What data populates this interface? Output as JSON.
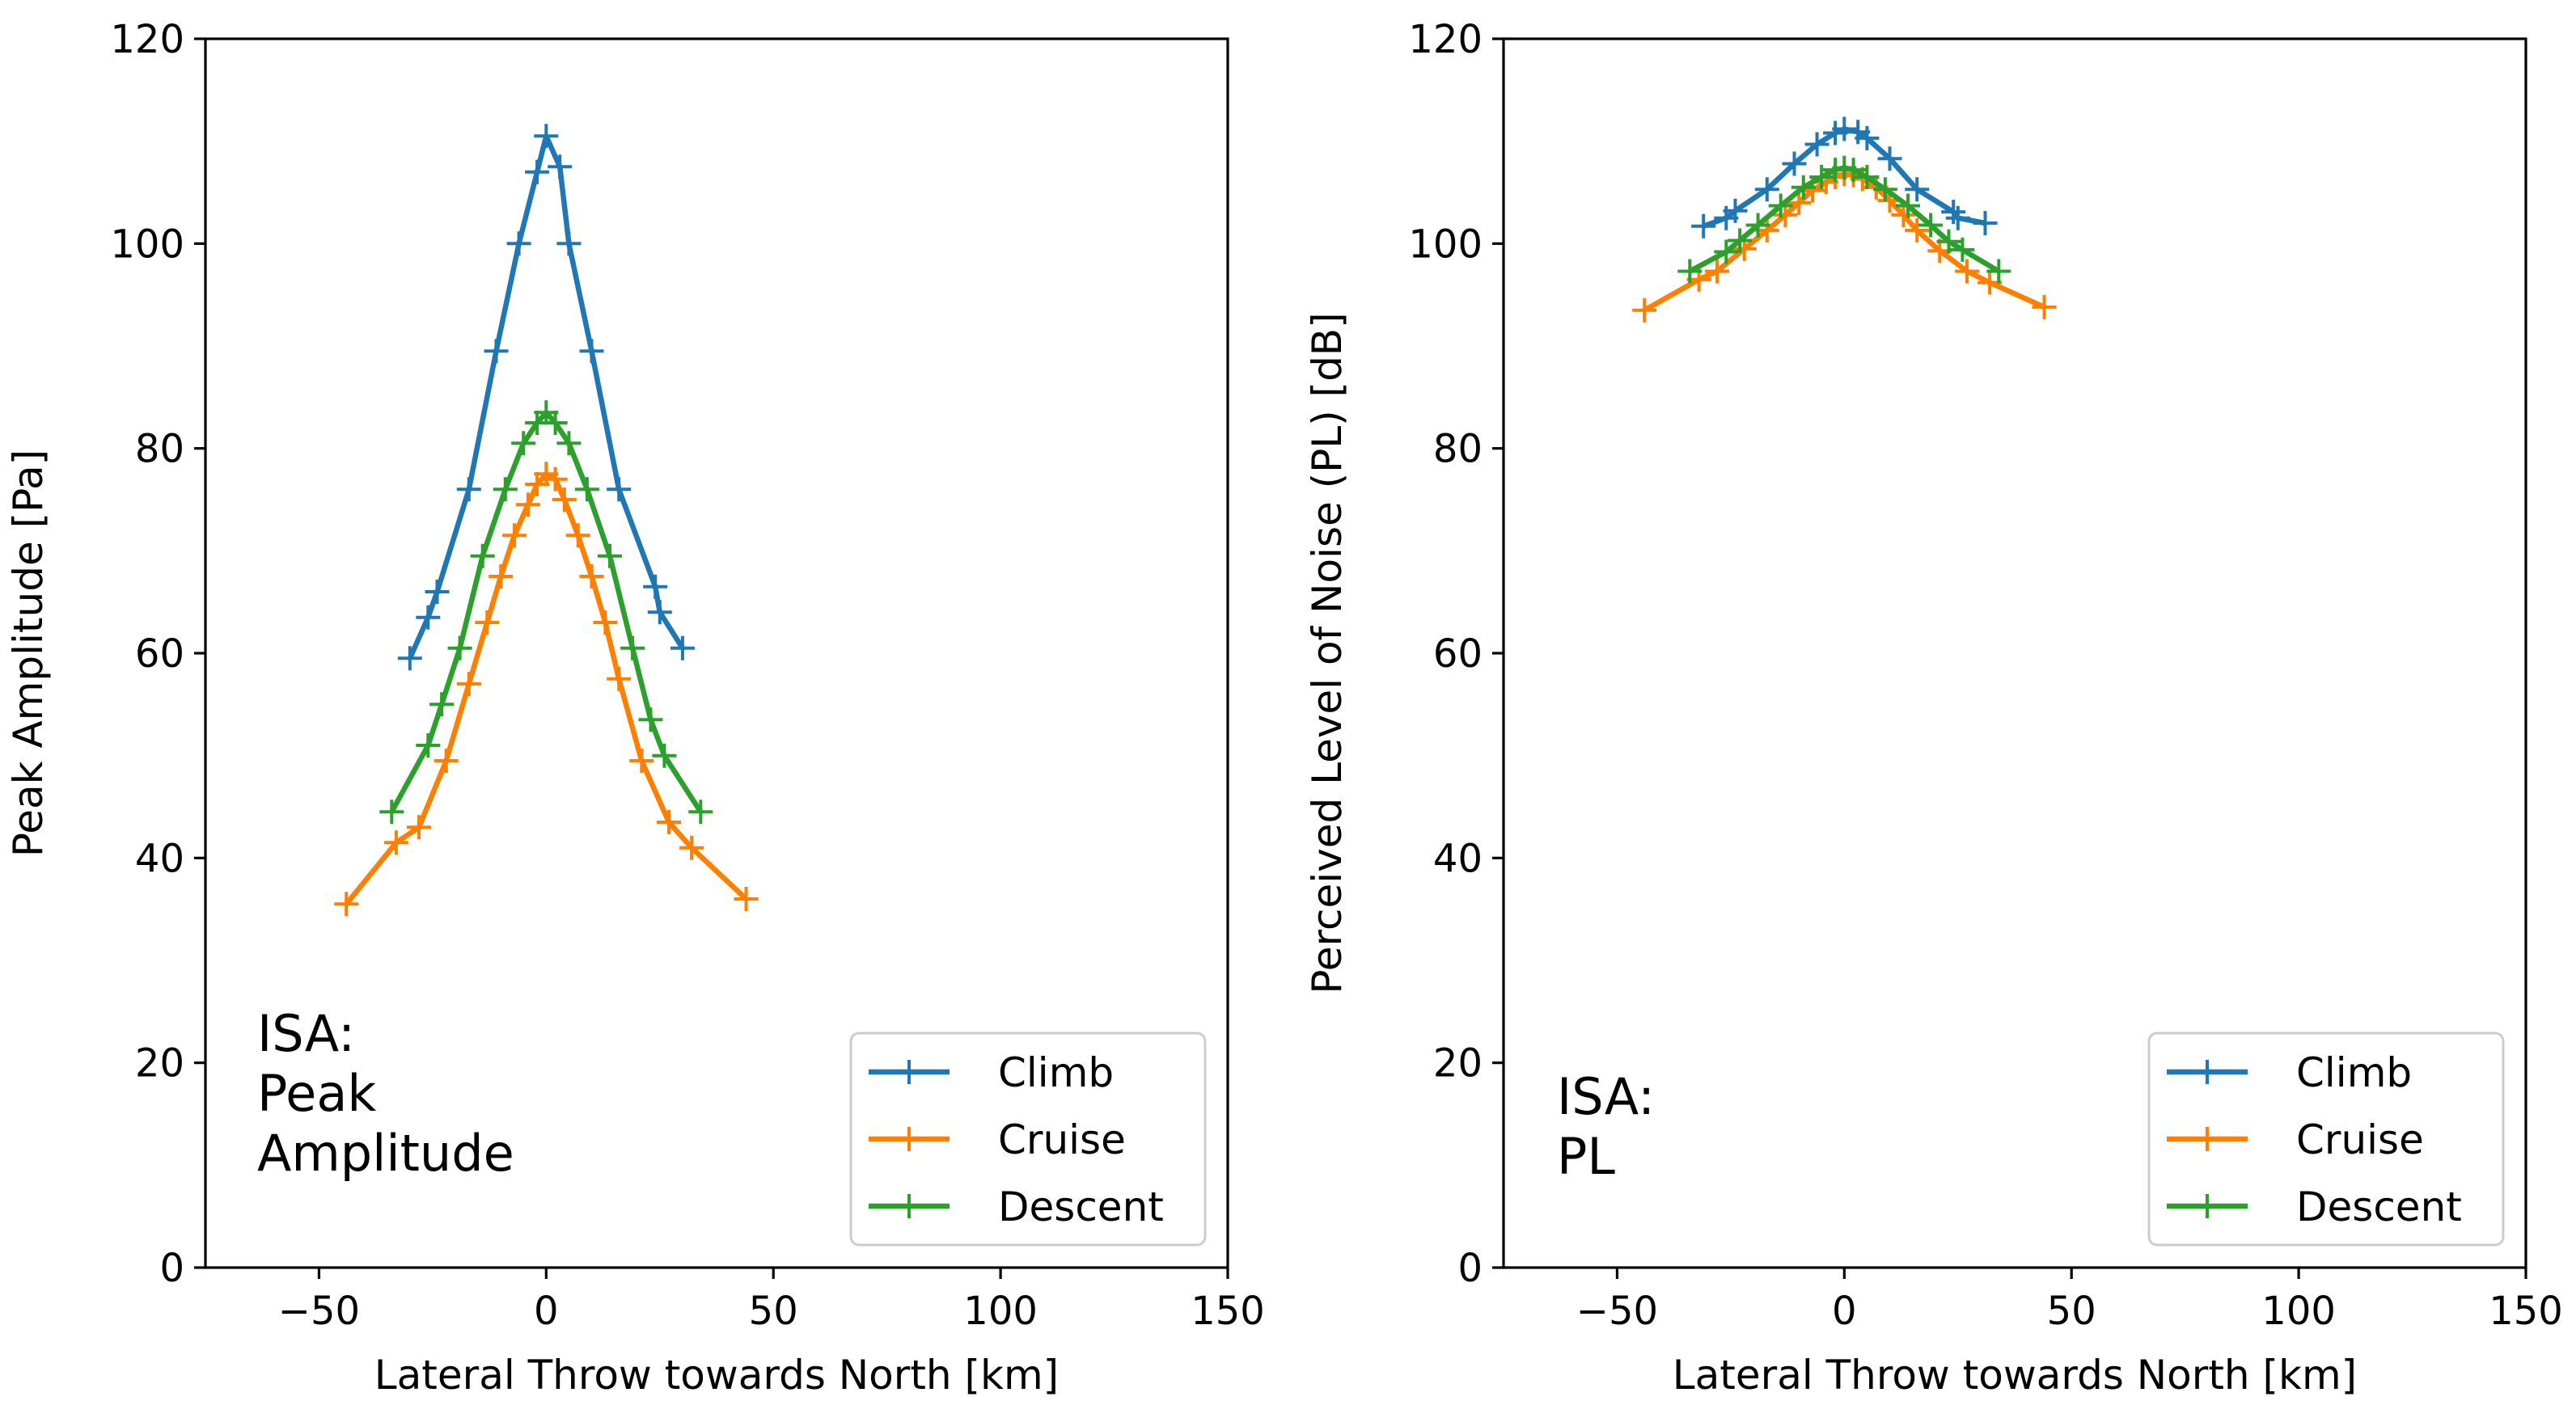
{
  "chart_data": [
    {
      "type": "line",
      "title": "",
      "xlabel": "Lateral Throw towards North [km]",
      "ylabel": "Peak Amplitude [Pa]",
      "xlim": [
        -75,
        150
      ],
      "ylim": [
        0,
        120
      ],
      "xticks": [
        "−50",
        "0",
        "50",
        "100",
        "150"
      ],
      "xtick_values": [
        -50,
        0,
        50,
        100,
        150
      ],
      "yticks": [
        "0",
        "20",
        "40",
        "60",
        "80",
        "100",
        "120"
      ],
      "ytick_values": [
        0,
        20,
        40,
        60,
        80,
        100,
        120
      ],
      "annotation": [
        "ISA:",
        "Peak",
        "Amplitude"
      ],
      "legend_position": "lower right",
      "series": [
        {
          "name": "Climb",
          "color": "#1f77b4",
          "x": [
            -30,
            -26,
            -24,
            -17,
            -11,
            -6,
            -2,
            0,
            3,
            5,
            10,
            16,
            24,
            25,
            30
          ],
          "y": [
            59.5,
            63.5,
            66,
            76,
            89.5,
            100,
            107,
            110.5,
            107.5,
            100,
            89.5,
            76,
            66.5,
            64,
            60.5
          ]
        },
        {
          "name": "Cruise",
          "color": "#ff7f00",
          "x": [
            -44,
            -33,
            -28,
            -22,
            -17,
            -13,
            -10,
            -7,
            -4,
            -2,
            0,
            2,
            4,
            7,
            10,
            13,
            16,
            21,
            27,
            32,
            44
          ],
          "y": [
            35.5,
            41.5,
            43,
            49.5,
            57,
            63,
            67.5,
            71.5,
            74.5,
            76.5,
            77.5,
            77,
            75,
            71.5,
            67.5,
            63,
            57.5,
            49.5,
            43.5,
            41,
            36
          ]
        },
        {
          "name": "Descent",
          "color": "#2ca02c",
          "x": [
            -34,
            -26,
            -23,
            -19,
            -14,
            -9,
            -5,
            -2,
            0,
            2,
            5,
            9,
            14,
            19,
            23,
            26,
            34
          ],
          "y": [
            44.5,
            51,
            55,
            60.5,
            69.5,
            76,
            80.5,
            82.5,
            83.5,
            82.5,
            80.5,
            76,
            69.5,
            60.5,
            53.5,
            50,
            44.5
          ]
        }
      ]
    },
    {
      "type": "line",
      "title": "",
      "xlabel": "Lateral Throw towards North [km]",
      "ylabel": "Perceived Level of Noise (PL) [dB]",
      "xlim": [
        -75,
        150
      ],
      "ylim": [
        0,
        120
      ],
      "xticks": [
        "−50",
        "0",
        "50",
        "100",
        "150"
      ],
      "xtick_values": [
        -50,
        0,
        50,
        100,
        150
      ],
      "yticks": [
        "0",
        "20",
        "40",
        "60",
        "80",
        "100",
        "120"
      ],
      "ytick_values": [
        0,
        20,
        40,
        60,
        80,
        100,
        120
      ],
      "annotation": [
        "ISA:",
        "PL"
      ],
      "legend_position": "lower right",
      "series": [
        {
          "name": "Climb",
          "color": "#1f77b4",
          "x": [
            -31,
            -26,
            -24,
            -17,
            -11,
            -6,
            -2,
            0,
            3,
            5,
            10,
            16,
            24,
            25,
            31
          ],
          "y": [
            101.7,
            102.5,
            103.2,
            105.3,
            107.8,
            109.7,
            110.8,
            111.2,
            110.9,
            110.3,
            108.3,
            105.3,
            103.1,
            102.5,
            102
          ]
        },
        {
          "name": "Cruise",
          "color": "#ff7f00",
          "x": [
            -44,
            -32,
            -28,
            -22,
            -17,
            -13,
            -10,
            -7,
            -4,
            -2,
            0,
            2,
            4,
            7,
            10,
            13,
            16,
            21,
            27,
            32,
            44
          ],
          "y": [
            93.5,
            96.5,
            97.3,
            99.5,
            101.3,
            102.8,
            104,
            105.2,
            106,
            106.5,
            106.8,
            106.7,
            106.3,
            105.5,
            104.2,
            102.8,
            101.3,
            99.3,
            97.3,
            96.2,
            93.8
          ]
        },
        {
          "name": "Descent",
          "color": "#2ca02c",
          "x": [
            -34,
            -26,
            -23,
            -19,
            -14,
            -9,
            -5,
            -2,
            0,
            2,
            5,
            9,
            14,
            19,
            23,
            26,
            34
          ],
          "y": [
            97.3,
            99.2,
            100.3,
            101.8,
            103.7,
            105.5,
            106.5,
            107.2,
            107.4,
            107.2,
            106.5,
            105.3,
            103.7,
            101.8,
            100.2,
            99.4,
            97.3
          ]
        }
      ]
    }
  ]
}
